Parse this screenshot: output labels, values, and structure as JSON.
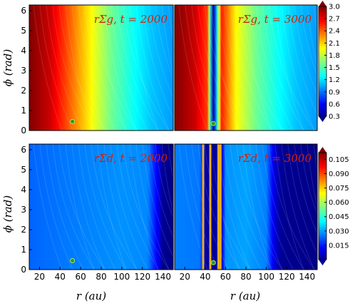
{
  "figure": {
    "ylabel": "ϕ (rad)",
    "xlabel": "r (au)",
    "xlabel_left": "r (au)",
    "xlabel_right": "r (au)"
  },
  "chart_data": [
    {
      "type": "heatmap",
      "quantity": "gas",
      "title": "rΣg, t = 2000",
      "x_range": [
        10,
        150
      ],
      "y_range": [
        0,
        6.28
      ],
      "xticks": [
        20,
        40,
        60,
        80,
        100,
        120,
        140
      ],
      "yticks": [
        0,
        1,
        2,
        3,
        4,
        5,
        6
      ],
      "planet": {
        "r": 52,
        "phi": 0.45
      },
      "value_profile": {
        "r": [
          10,
          30,
          50,
          70,
          90,
          110,
          130,
          150
        ],
        "value": [
          3.0,
          2.8,
          2.4,
          2.0,
          1.6,
          1.35,
          1.15,
          1.05
        ]
      }
    },
    {
      "type": "heatmap",
      "quantity": "gas",
      "title": "rΣg, t = 3000",
      "x_range": [
        10,
        150
      ],
      "y_range": [
        0,
        6.28
      ],
      "xticks": [
        20,
        40,
        60,
        80,
        100,
        120,
        140
      ],
      "yticks": [
        0,
        1,
        2,
        3,
        4,
        5,
        6
      ],
      "planet": {
        "r": 48,
        "phi": 0.35
      },
      "gap": {
        "r_center": 48,
        "r_width": 12
      },
      "value_profile": {
        "r": [
          10,
          30,
          42,
          48,
          56,
          70,
          90,
          110,
          130,
          150
        ],
        "value": [
          3.0,
          2.8,
          2.5,
          0.3,
          2.6,
          2.0,
          1.6,
          1.35,
          1.15,
          1.05
        ]
      }
    },
    {
      "type": "heatmap",
      "quantity": "dust",
      "title": "rΣd, t = 2000",
      "x_range": [
        10,
        150
      ],
      "y_range": [
        0,
        6.28
      ],
      "xticks": [
        20,
        40,
        60,
        80,
        100,
        120,
        140
      ],
      "yticks": [
        0,
        1,
        2,
        3,
        4,
        5,
        6
      ],
      "planet": {
        "r": 52,
        "phi": 0.45
      },
      "value_profile": {
        "r": [
          10,
          60,
          100,
          125,
          135,
          140,
          150
        ],
        "value": [
          0.025,
          0.028,
          0.03,
          0.029,
          0.012,
          0.002,
          0.001
        ]
      }
    },
    {
      "type": "heatmap",
      "quantity": "dust",
      "title": "rΣd, t = 3000",
      "x_range": [
        10,
        150
      ],
      "y_range": [
        0,
        6.28
      ],
      "xticks": [
        20,
        40,
        60,
        80,
        100,
        120,
        140
      ],
      "yticks": [
        0,
        1,
        2,
        3,
        4,
        5,
        6
      ],
      "planet": {
        "r": 48,
        "phi": 0.35
      },
      "rings": [
        {
          "r": 38
        },
        {
          "r": 45
        },
        {
          "r": 53
        },
        {
          "r": 55
        }
      ],
      "value_profile": {
        "r": [
          10,
          35,
          40,
          48,
          56,
          60,
          80,
          100,
          108,
          115,
          150
        ],
        "value": [
          0.028,
          0.027,
          0.005,
          0.002,
          0.006,
          0.03,
          0.032,
          0.028,
          0.01,
          0.002,
          0.001
        ]
      }
    }
  ],
  "colorbars": [
    {
      "quantity": "gas",
      "min": 0.3,
      "max": 3.0,
      "ticks": [
        "3.0",
        "2.7",
        "2.4",
        "2.1",
        "1.8",
        "1.5",
        "1.2",
        "0.9",
        "0.6",
        "0.3"
      ]
    },
    {
      "quantity": "dust",
      "min": 0.0,
      "max": 0.112,
      "ticks": [
        "0.105",
        "0.090",
        "0.075",
        "0.060",
        "0.045",
        "0.030",
        "0.015"
      ]
    }
  ]
}
